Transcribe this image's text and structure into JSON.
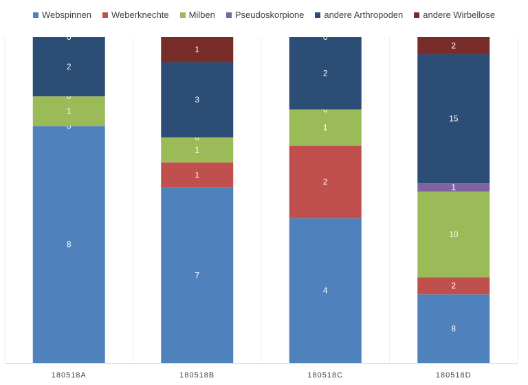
{
  "chart_data": {
    "type": "bar",
    "stacked": true,
    "percent_stacked": true,
    "legend_position": "top",
    "grid": false,
    "categories": [
      "180518A",
      "180518B",
      "180518C",
      "180518D"
    ],
    "series": [
      {
        "name": "Webspinnen",
        "color": "#4f81bd",
        "values": [
          8,
          7,
          4,
          8
        ]
      },
      {
        "name": "Weberknechte",
        "color": "#c0504d",
        "values": [
          0,
          1,
          2,
          2
        ]
      },
      {
        "name": "Milben",
        "color": "#9bbb59",
        "values": [
          1,
          1,
          1,
          10
        ]
      },
      {
        "name": "Pseudoskorpione",
        "color": "#8064a2",
        "values": [
          0,
          0,
          0,
          1
        ]
      },
      {
        "name": "andere Arthropoden",
        "color": "#2c4d75",
        "values": [
          2,
          3,
          2,
          15
        ]
      },
      {
        "name": "andere Wirbellose",
        "color": "#772c2a",
        "values": [
          0,
          1,
          0,
          2
        ]
      }
    ]
  }
}
